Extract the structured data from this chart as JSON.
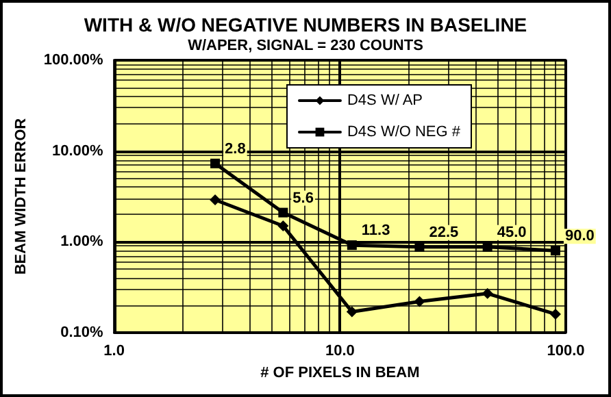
{
  "chart_data": {
    "type": "line",
    "title": "WITH & W/O NEGATIVE NUMBERS IN BASELINE",
    "subtitle": "W/APER, SIGNAL = 230 COUNTS",
    "xlabel": "# OF PIXELS IN BEAM",
    "ylabel": "BEAM WIDTH ERROR",
    "x": [
      2.8,
      5.6,
      11.3,
      22.5,
      45.0,
      90.0
    ],
    "series": [
      {
        "name": "D4S W/ AP",
        "color": "#000000",
        "marker": "diamond",
        "values": [
          2.9,
          1.5,
          0.17,
          0.22,
          0.27,
          0.16
        ]
      },
      {
        "name": "D4S W/O NEG #",
        "color": "#000000",
        "marker": "square",
        "values": [
          7.3,
          2.1,
          0.92,
          0.88,
          0.88,
          0.8
        ]
      }
    ],
    "annotations": [
      {
        "text": "2.8",
        "x": 2.8,
        "y": 7.3
      },
      {
        "text": "5.6",
        "x": 5.6,
        "y": 2.1
      },
      {
        "text": "11.3",
        "x": 11.3,
        "y": 0.92
      },
      {
        "text": "22.5",
        "x": 22.5,
        "y": 0.88
      },
      {
        "text": "45.0",
        "x": 45.0,
        "y": 0.88
      },
      {
        "text": "90.0",
        "x": 90.0,
        "y": 0.8
      }
    ],
    "log": "xy",
    "xlim": [
      1,
      100
    ],
    "ylim": [
      0.1,
      100
    ],
    "xticks": [
      {
        "value": 1,
        "label": "1.0"
      },
      {
        "value": 10,
        "label": "10.0"
      },
      {
        "value": 100,
        "label": "100.0"
      }
    ],
    "yticks": [
      {
        "value": 0.1,
        "label": "0.10%"
      },
      {
        "value": 1,
        "label": "1.00%"
      },
      {
        "value": 10,
        "label": "10.00%"
      },
      {
        "value": 100,
        "label": "100.00%"
      }
    ],
    "grid": true,
    "legend": "top right",
    "line_style": "solid"
  }
}
